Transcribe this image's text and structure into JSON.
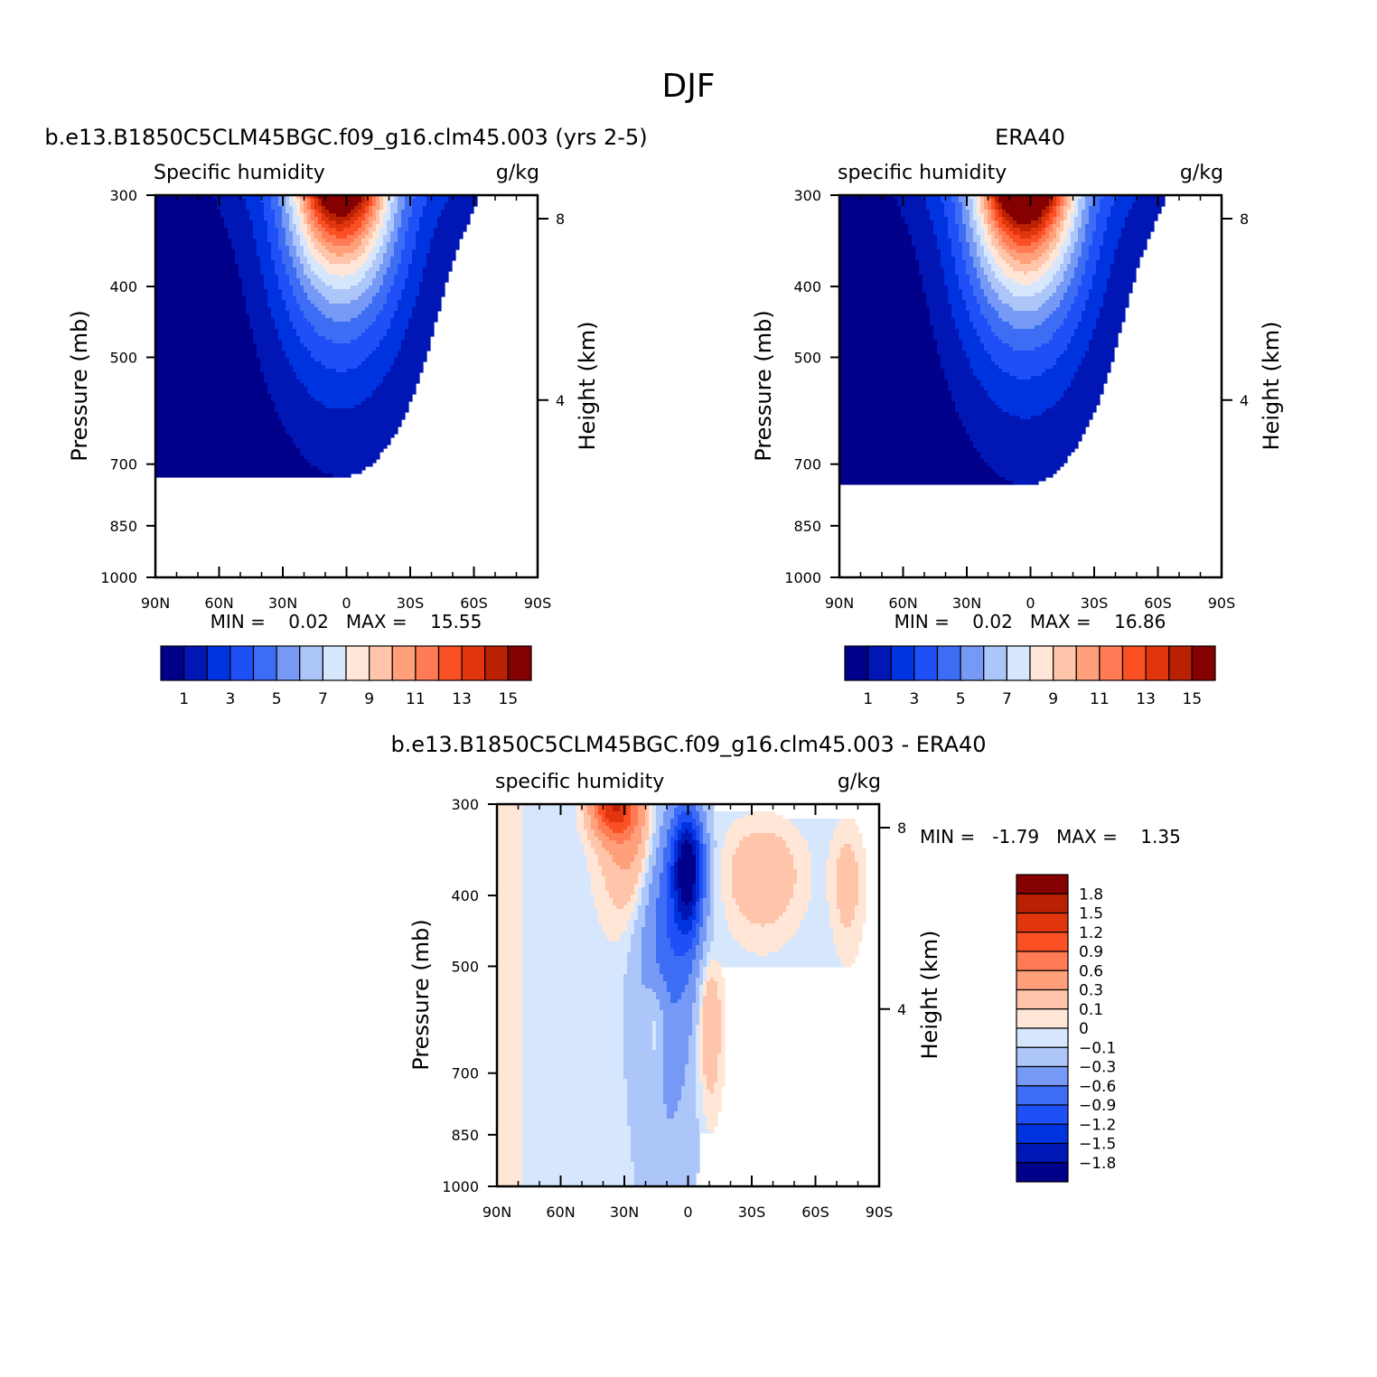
{
  "figure": {
    "title": "DJF"
  },
  "chart_data": [
    {
      "type": "heatmap",
      "panel": "model",
      "title": "b.e13.B1850C5CLM45BGC.f09_g16.clm45.003 (yrs 2-5)",
      "left_label": "Specific humidity",
      "right_label": "g/kg",
      "xlabel": "",
      "ylabel": "Pressure (mb)",
      "y2label": "Height (km)",
      "x_ticks": [
        "90N",
        "60N",
        "30N",
        "0",
        "30S",
        "60S",
        "90S"
      ],
      "y_ticks": [
        "300",
        "400",
        "500",
        "700",
        "850",
        "1000"
      ],
      "y2_ticks": [
        "4",
        "8"
      ],
      "ylim": [
        1000,
        300
      ],
      "y_scale": "log-pressure",
      "stats_text": "MIN =    0.02   MAX =    15.55",
      "min": 0.02,
      "max": 15.55,
      "colorbar_orientation": "horizontal",
      "colorbar_labels": [
        "1",
        "3",
        "5",
        "7",
        "9",
        "11",
        "13",
        "15"
      ],
      "peak_latitude": 0,
      "peak_value": 15.55,
      "missing_region": "SH high latitudes near surface"
    },
    {
      "type": "heatmap",
      "panel": "observation",
      "title": "ERA40",
      "left_label": "specific humidity",
      "right_label": "g/kg",
      "xlabel": "",
      "ylabel": "Pressure (mb)",
      "y2label": "Height (km)",
      "x_ticks": [
        "90N",
        "60N",
        "30N",
        "0",
        "30S",
        "60S",
        "90S"
      ],
      "y_ticks": [
        "300",
        "400",
        "500",
        "700",
        "850",
        "1000"
      ],
      "y2_ticks": [
        "4",
        "8"
      ],
      "ylim": [
        1000,
        300
      ],
      "y_scale": "log-pressure",
      "stats_text": "MIN =    0.02   MAX =    16.86",
      "min": 0.02,
      "max": 16.86,
      "colorbar_orientation": "horizontal",
      "colorbar_labels": [
        "1",
        "3",
        "5",
        "7",
        "9",
        "11",
        "13",
        "15"
      ],
      "peak_latitude": 0,
      "peak_value": 16.86
    },
    {
      "type": "heatmap",
      "panel": "difference",
      "title": "b.e13.B1850C5CLM45BGC.f09_g16.clm45.003 - ERA40",
      "left_label": "specific humidity",
      "right_label": "g/kg",
      "xlabel": "",
      "ylabel": "Pressure (mb)",
      "y2label": "Height (km)",
      "x_ticks": [
        "90N",
        "60N",
        "30N",
        "0",
        "30S",
        "60S",
        "90S"
      ],
      "y_ticks": [
        "300",
        "400",
        "500",
        "700",
        "850",
        "1000"
      ],
      "y2_ticks": [
        "4",
        "8"
      ],
      "ylim": [
        1000,
        300
      ],
      "y_scale": "log-pressure",
      "stats_text": "MIN =   -1.79   MAX =    1.35",
      "min": -1.79,
      "max": 1.35,
      "colorbar_orientation": "vertical",
      "colorbar_labels": [
        "1.8",
        "1.5",
        "1.2",
        "0.9",
        "0.6",
        "0.3",
        "0.1",
        "0",
        "-0.1",
        "-0.3",
        "-0.6",
        "-0.9",
        "-1.2",
        "-1.5",
        "-1.8"
      ]
    }
  ],
  "palettes": {
    "absolute": [
      "#00008b",
      "#0016b5",
      "#0033e0",
      "#1f4ff7",
      "#3d6cf5",
      "#7599f5",
      "#adc6fa",
      "#d6e7fd",
      "#ffe6d6",
      "#ffc5aa",
      "#ffa07a",
      "#ff7b55",
      "#fb5024",
      "#e1350e",
      "#ba2002",
      "#850000"
    ],
    "difference": [
      "#00008b",
      "#0016b5",
      "#0033e0",
      "#1f4ff7",
      "#3d6cf5",
      "#7599f5",
      "#adc6fa",
      "#d6e7fd",
      "#ffe6d6",
      "#ffc5aa",
      "#ffa07a",
      "#ff7b55",
      "#fb5024",
      "#e1350e",
      "#ba2002",
      "#850000"
    ]
  },
  "missing_color": "#ffffff"
}
